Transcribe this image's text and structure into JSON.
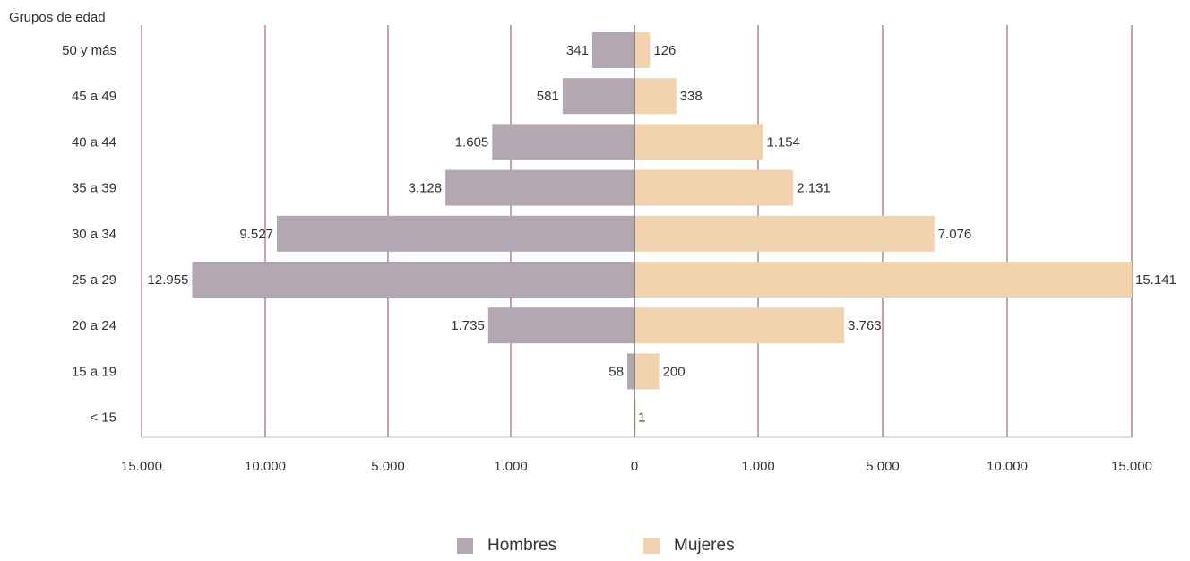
{
  "chart_data": {
    "type": "bar",
    "orientation": "horizontal-population-pyramid",
    "ylabel": "Grupos de edad",
    "categories": [
      "50 y más",
      "45 a 49",
      "40 a 44",
      "35 a 39",
      "30 a 34",
      "25 a 29",
      "20 a 24",
      "15 a 19",
      "< 15"
    ],
    "series": [
      {
        "name": "Hombres",
        "side": "left",
        "color": "#b3a8b1",
        "values": [
          341,
          581,
          1605,
          3128,
          9527,
          12955,
          1735,
          58,
          null
        ],
        "value_labels": [
          "341",
          "581",
          "1.605",
          "3.128",
          "9.527",
          "12.955",
          "1.735",
          "58",
          ""
        ]
      },
      {
        "name": "Mujeres",
        "side": "right",
        "color": "#f2d3b0",
        "values": [
          126,
          338,
          1154,
          2131,
          7076,
          15141,
          3763,
          200,
          1
        ],
        "value_labels": [
          "126",
          "338",
          "1.154",
          "2.131",
          "7.076",
          "15.141",
          "3.763",
          "200",
          "1"
        ]
      }
    ],
    "xtick_labels": [
      "15.000",
      "10.000",
      "5.000",
      "1.000",
      "0",
      "1.000",
      "5.000",
      "10.000",
      "15.000"
    ],
    "xtick_values": [
      -15000,
      -10000,
      -5000,
      -1000,
      0,
      1000,
      5000,
      10000,
      15000
    ],
    "x_scale": "piecewise-linear",
    "grid": true,
    "legend": "bottom-center"
  },
  "colors": {
    "hombres": "#b3a8b1",
    "mujeres": "#f2d3b0",
    "gridline": "#8a4a52",
    "text": "#333333"
  }
}
